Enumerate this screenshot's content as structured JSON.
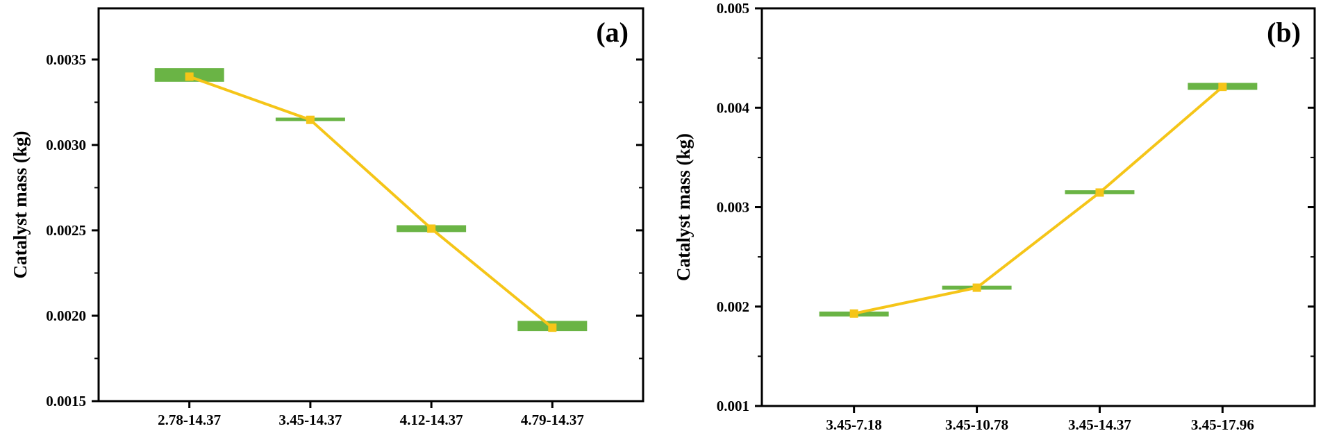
{
  "chart_data": [
    {
      "type": "line",
      "panel_label": "(a)",
      "title": "",
      "xlabel": "",
      "ylabel": "Catalyst mass (kg)",
      "categories": [
        "2.78-14.37",
        "3.45-14.37",
        "4.12-14.37",
        "4.79-14.37"
      ],
      "ylim": [
        0.0015,
        0.0038
      ],
      "yticks": [
        0.0015,
        0.002,
        0.0025,
        0.003,
        0.0035
      ],
      "ytick_labels": [
        "0.0015",
        "0.0020",
        "0.0025",
        "0.0030",
        "0.0035"
      ],
      "series": [
        {
          "name": "Catalyst mass",
          "values": [
            0.0034,
            0.003147,
            0.00251,
            0.00193
          ],
          "box_low": [
            0.00337,
            0.00314,
            0.00249,
            0.00191
          ],
          "box_high": [
            0.00345,
            0.00316,
            0.00253,
            0.00197
          ],
          "line_color": "#f5c518",
          "marker_color": "#f5c518",
          "box_color": "#6ab445"
        }
      ],
      "grid": false
    },
    {
      "type": "line",
      "panel_label": "(b)",
      "title": "",
      "xlabel": "",
      "ylabel": "Catalyst mass (kg)",
      "categories": [
        "3.45-7.18",
        "3.45-10.78",
        "3.45-14.37",
        "3.45-17.96"
      ],
      "ylim": [
        0.001,
        0.005
      ],
      "yticks": [
        0.001,
        0.002,
        0.003,
        0.004,
        0.005
      ],
      "ytick_labels": [
        "0.001",
        "0.002",
        "0.003",
        "0.004",
        "0.005"
      ],
      "series": [
        {
          "name": "Catalyst mass",
          "values": [
            0.00193,
            0.00219,
            0.003147,
            0.00421
          ],
          "box_low": [
            0.0019,
            0.00217,
            0.00313,
            0.00418
          ],
          "box_high": [
            0.00195,
            0.00221,
            0.00317,
            0.00425
          ],
          "line_color": "#f5c518",
          "marker_color": "#f5c518",
          "box_color": "#6ab445"
        }
      ],
      "grid": false
    }
  ]
}
